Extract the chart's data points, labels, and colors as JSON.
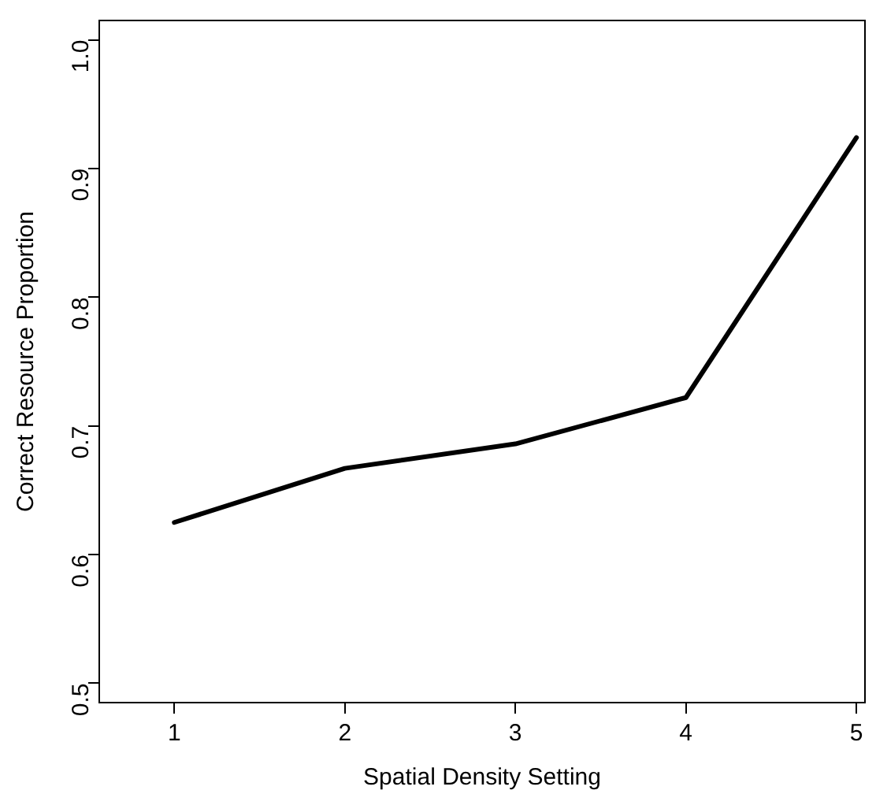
{
  "chart_data": {
    "type": "line",
    "xlabel": "Spatial Density Setting",
    "ylabel": "Correct Resource Proportion",
    "x": [
      1,
      2,
      3,
      4,
      5
    ],
    "series": [
      {
        "color": "#000000",
        "values": [
          0.625,
          0.667,
          0.686,
          0.722,
          0.924
        ]
      }
    ],
    "xlim": [
      0.56,
      5.05
    ],
    "xticks": [
      1,
      2,
      3,
      4,
      5
    ],
    "ylim": [
      0.485,
      1.015
    ],
    "yticks": [
      0.5,
      0.6,
      0.7,
      0.8,
      0.9,
      {
        "value": 1.0,
        "label": "1.0"
      }
    ],
    "grid": false,
    "legend": false,
    "marker": "none",
    "line_style": "solid"
  }
}
